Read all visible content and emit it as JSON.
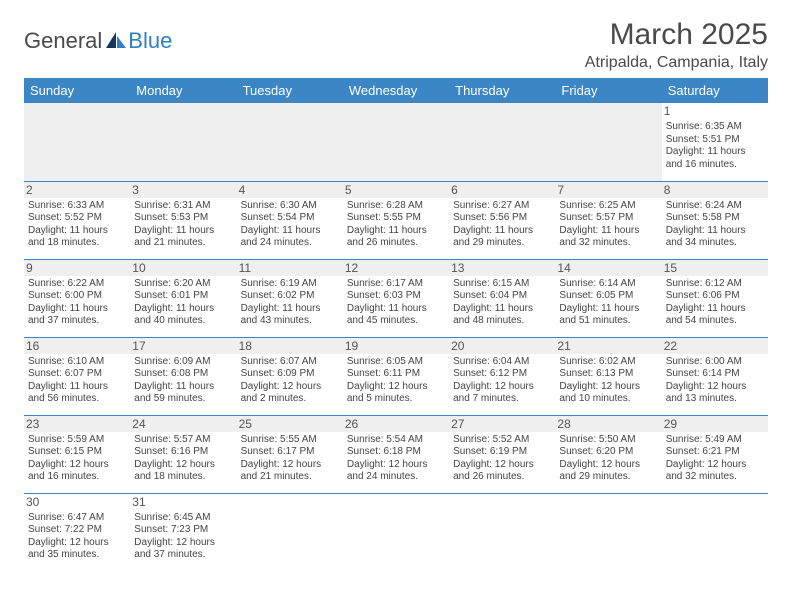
{
  "logo": {
    "general": "General",
    "blue": "Blue"
  },
  "title": "March 2025",
  "location": "Atripalda, Campania, Italy",
  "colors": {
    "header_bg": "#3d86c6",
    "header_fg": "#ffffff",
    "daybar_bg": "#efefef",
    "border": "#3d86c6",
    "text": "#444444"
  },
  "days": [
    "Sunday",
    "Monday",
    "Tuesday",
    "Wednesday",
    "Thursday",
    "Friday",
    "Saturday"
  ],
  "weeks": [
    [
      null,
      null,
      null,
      null,
      null,
      null,
      {
        "n": "1",
        "sr": "Sunrise: 6:35 AM",
        "ss": "Sunset: 5:51 PM",
        "d1": "Daylight: 11 hours",
        "d2": "and 16 minutes."
      }
    ],
    [
      {
        "n": "2",
        "sr": "Sunrise: 6:33 AM",
        "ss": "Sunset: 5:52 PM",
        "d1": "Daylight: 11 hours",
        "d2": "and 18 minutes."
      },
      {
        "n": "3",
        "sr": "Sunrise: 6:31 AM",
        "ss": "Sunset: 5:53 PM",
        "d1": "Daylight: 11 hours",
        "d2": "and 21 minutes."
      },
      {
        "n": "4",
        "sr": "Sunrise: 6:30 AM",
        "ss": "Sunset: 5:54 PM",
        "d1": "Daylight: 11 hours",
        "d2": "and 24 minutes."
      },
      {
        "n": "5",
        "sr": "Sunrise: 6:28 AM",
        "ss": "Sunset: 5:55 PM",
        "d1": "Daylight: 11 hours",
        "d2": "and 26 minutes."
      },
      {
        "n": "6",
        "sr": "Sunrise: 6:27 AM",
        "ss": "Sunset: 5:56 PM",
        "d1": "Daylight: 11 hours",
        "d2": "and 29 minutes."
      },
      {
        "n": "7",
        "sr": "Sunrise: 6:25 AM",
        "ss": "Sunset: 5:57 PM",
        "d1": "Daylight: 11 hours",
        "d2": "and 32 minutes."
      },
      {
        "n": "8",
        "sr": "Sunrise: 6:24 AM",
        "ss": "Sunset: 5:58 PM",
        "d1": "Daylight: 11 hours",
        "d2": "and 34 minutes."
      }
    ],
    [
      {
        "n": "9",
        "sr": "Sunrise: 6:22 AM",
        "ss": "Sunset: 6:00 PM",
        "d1": "Daylight: 11 hours",
        "d2": "and 37 minutes."
      },
      {
        "n": "10",
        "sr": "Sunrise: 6:20 AM",
        "ss": "Sunset: 6:01 PM",
        "d1": "Daylight: 11 hours",
        "d2": "and 40 minutes."
      },
      {
        "n": "11",
        "sr": "Sunrise: 6:19 AM",
        "ss": "Sunset: 6:02 PM",
        "d1": "Daylight: 11 hours",
        "d2": "and 43 minutes."
      },
      {
        "n": "12",
        "sr": "Sunrise: 6:17 AM",
        "ss": "Sunset: 6:03 PM",
        "d1": "Daylight: 11 hours",
        "d2": "and 45 minutes."
      },
      {
        "n": "13",
        "sr": "Sunrise: 6:15 AM",
        "ss": "Sunset: 6:04 PM",
        "d1": "Daylight: 11 hours",
        "d2": "and 48 minutes."
      },
      {
        "n": "14",
        "sr": "Sunrise: 6:14 AM",
        "ss": "Sunset: 6:05 PM",
        "d1": "Daylight: 11 hours",
        "d2": "and 51 minutes."
      },
      {
        "n": "15",
        "sr": "Sunrise: 6:12 AM",
        "ss": "Sunset: 6:06 PM",
        "d1": "Daylight: 11 hours",
        "d2": "and 54 minutes."
      }
    ],
    [
      {
        "n": "16",
        "sr": "Sunrise: 6:10 AM",
        "ss": "Sunset: 6:07 PM",
        "d1": "Daylight: 11 hours",
        "d2": "and 56 minutes."
      },
      {
        "n": "17",
        "sr": "Sunrise: 6:09 AM",
        "ss": "Sunset: 6:08 PM",
        "d1": "Daylight: 11 hours",
        "d2": "and 59 minutes."
      },
      {
        "n": "18",
        "sr": "Sunrise: 6:07 AM",
        "ss": "Sunset: 6:09 PM",
        "d1": "Daylight: 12 hours",
        "d2": "and 2 minutes."
      },
      {
        "n": "19",
        "sr": "Sunrise: 6:05 AM",
        "ss": "Sunset: 6:11 PM",
        "d1": "Daylight: 12 hours",
        "d2": "and 5 minutes."
      },
      {
        "n": "20",
        "sr": "Sunrise: 6:04 AM",
        "ss": "Sunset: 6:12 PM",
        "d1": "Daylight: 12 hours",
        "d2": "and 7 minutes."
      },
      {
        "n": "21",
        "sr": "Sunrise: 6:02 AM",
        "ss": "Sunset: 6:13 PM",
        "d1": "Daylight: 12 hours",
        "d2": "and 10 minutes."
      },
      {
        "n": "22",
        "sr": "Sunrise: 6:00 AM",
        "ss": "Sunset: 6:14 PM",
        "d1": "Daylight: 12 hours",
        "d2": "and 13 minutes."
      }
    ],
    [
      {
        "n": "23",
        "sr": "Sunrise: 5:59 AM",
        "ss": "Sunset: 6:15 PM",
        "d1": "Daylight: 12 hours",
        "d2": "and 16 minutes."
      },
      {
        "n": "24",
        "sr": "Sunrise: 5:57 AM",
        "ss": "Sunset: 6:16 PM",
        "d1": "Daylight: 12 hours",
        "d2": "and 18 minutes."
      },
      {
        "n": "25",
        "sr": "Sunrise: 5:55 AM",
        "ss": "Sunset: 6:17 PM",
        "d1": "Daylight: 12 hours",
        "d2": "and 21 minutes."
      },
      {
        "n": "26",
        "sr": "Sunrise: 5:54 AM",
        "ss": "Sunset: 6:18 PM",
        "d1": "Daylight: 12 hours",
        "d2": "and 24 minutes."
      },
      {
        "n": "27",
        "sr": "Sunrise: 5:52 AM",
        "ss": "Sunset: 6:19 PM",
        "d1": "Daylight: 12 hours",
        "d2": "and 26 minutes."
      },
      {
        "n": "28",
        "sr": "Sunrise: 5:50 AM",
        "ss": "Sunset: 6:20 PM",
        "d1": "Daylight: 12 hours",
        "d2": "and 29 minutes."
      },
      {
        "n": "29",
        "sr": "Sunrise: 5:49 AM",
        "ss": "Sunset: 6:21 PM",
        "d1": "Daylight: 12 hours",
        "d2": "and 32 minutes."
      }
    ],
    [
      {
        "n": "30",
        "sr": "Sunrise: 6:47 AM",
        "ss": "Sunset: 7:22 PM",
        "d1": "Daylight: 12 hours",
        "d2": "and 35 minutes."
      },
      {
        "n": "31",
        "sr": "Sunrise: 6:45 AM",
        "ss": "Sunset: 7:23 PM",
        "d1": "Daylight: 12 hours",
        "d2": "and 37 minutes."
      },
      null,
      null,
      null,
      null,
      null
    ]
  ]
}
